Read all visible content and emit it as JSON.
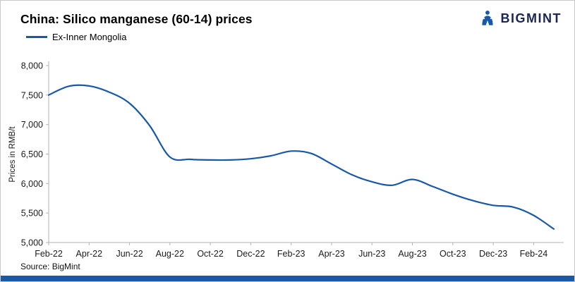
{
  "header": {
    "title": "China: Silico manganese (60-14) prices",
    "logo_text": "BIGMINT"
  },
  "legend": {
    "series_label": "Ex-Inner Mongolia"
  },
  "source": "Source: BigMint",
  "colors": {
    "line": "#1758a7",
    "accent_bar": "#1758a7",
    "logo_navy": "#1b2653"
  },
  "chart_data": {
    "type": "line",
    "title": "China: Silico manganese (60-14) prices",
    "series_name": "Ex-Inner Mongolia",
    "xlabel": "",
    "ylabel": "Prices in RMB/t",
    "ylim": [
      5000,
      8000
    ],
    "ytick_values": [
      5000,
      5500,
      6000,
      6500,
      7000,
      7500,
      8000
    ],
    "ytick_labels": [
      "5,000",
      "5,500",
      "6,000",
      "6,500",
      "7,000",
      "7,500",
      "8,000"
    ],
    "grid": false,
    "legend_position": "top-left",
    "x_tick_every": 2,
    "categories": [
      "Feb-22",
      "Mar-22",
      "Apr-22",
      "May-22",
      "Jun-22",
      "Jul-22",
      "Aug-22",
      "Sep-22",
      "Oct-22",
      "Nov-22",
      "Dec-22",
      "Jan-23",
      "Feb-23",
      "Mar-23",
      "Apr-23",
      "May-23",
      "Jun-23",
      "Jul-23",
      "Aug-23",
      "Sep-23",
      "Oct-23",
      "Nov-23",
      "Dec-23",
      "Jan-24",
      "Feb-24",
      "Mar-24"
    ],
    "values": [
      7500,
      7650,
      7655,
      7550,
      7360,
      6980,
      6450,
      6410,
      6400,
      6400,
      6420,
      6470,
      6550,
      6510,
      6330,
      6150,
      6030,
      5970,
      6070,
      5950,
      5820,
      5710,
      5630,
      5600,
      5460,
      5230
    ]
  }
}
